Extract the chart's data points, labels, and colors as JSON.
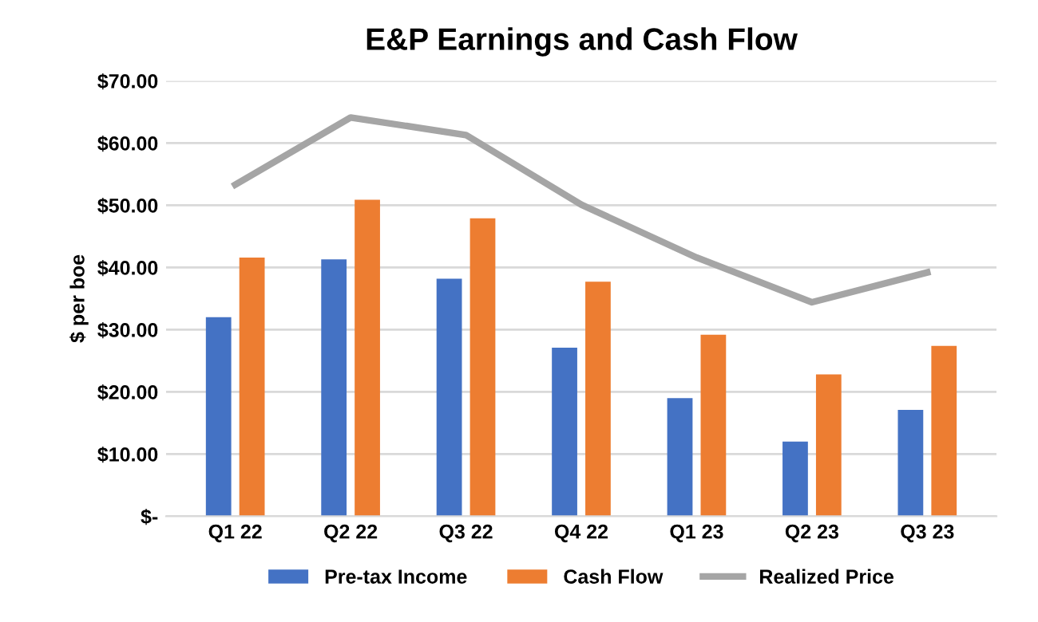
{
  "chart_data": {
    "type": "bar",
    "title": "E&P Earnings and Cash Flow",
    "ylabel": "$ per boe",
    "categories": [
      "Q1 22",
      "Q2 22",
      "Q3 22",
      "Q4 22",
      "Q1 23",
      "Q2 23",
      "Q3 23"
    ],
    "series": [
      {
        "name": "Pre-tax Income",
        "color": "#4472c4",
        "values": [
          32.0,
          41.3,
          38.2,
          27.1,
          19.0,
          12.0,
          17.1
        ]
      },
      {
        "name": "Cash Flow",
        "color": "#ed7d31",
        "values": [
          41.6,
          50.9,
          47.9,
          37.7,
          29.2,
          22.8,
          27.4
        ]
      },
      {
        "name": "Realized Price",
        "type": "line",
        "color": "#a5a5a5",
        "values": [
          53.3,
          64.1,
          61.3,
          50.1,
          41.6,
          34.4,
          39.2
        ]
      }
    ],
    "ylim": [
      0,
      70
    ],
    "yticks": [
      {
        "value": 0,
        "label": "$-"
      },
      {
        "value": 10,
        "label": "$10.00"
      },
      {
        "value": 20,
        "label": "$20.00"
      },
      {
        "value": 30,
        "label": "$30.00"
      },
      {
        "value": 40,
        "label": "$40.00"
      },
      {
        "value": 50,
        "label": "$50.00"
      },
      {
        "value": 60,
        "label": "$60.00"
      },
      {
        "value": 70,
        "label": "$70.00"
      }
    ],
    "grid": "y",
    "legend": "bottom"
  }
}
